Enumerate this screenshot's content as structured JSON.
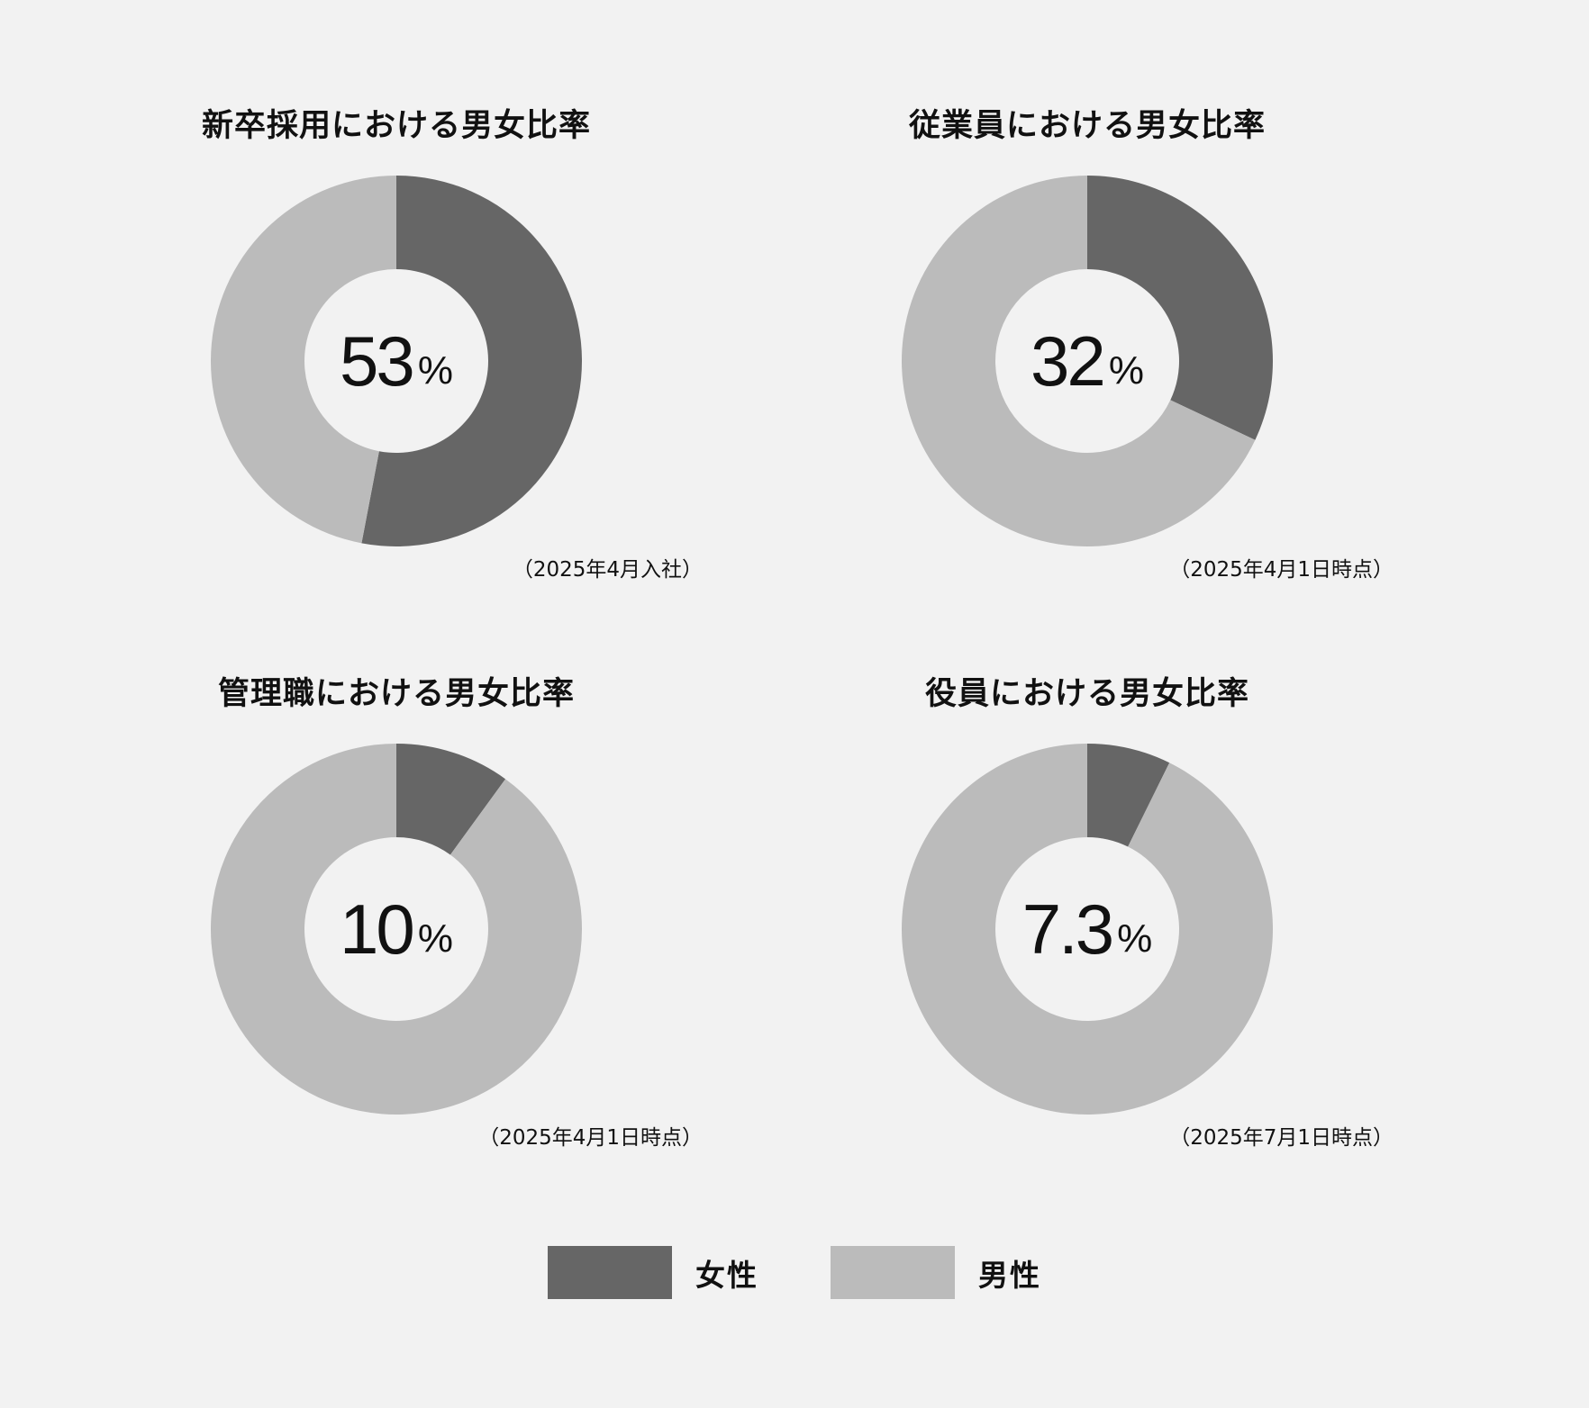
{
  "colors": {
    "female": "#666666",
    "male": "#bbbbbb",
    "background": "#f2f2f2"
  },
  "legend": [
    {
      "label": "女性",
      "color": "#666666"
    },
    {
      "label": "男性",
      "color": "#bbbbbb"
    }
  ],
  "chart_data": [
    {
      "type": "pie",
      "title": "新卒採用における男女比率",
      "center_label": "53",
      "unit": "%",
      "note": "（2025年4月入社）",
      "categories": [
        "女性",
        "男性"
      ],
      "values": [
        53,
        47
      ]
    },
    {
      "type": "pie",
      "title": "従業員における男女比率",
      "center_label": "32",
      "unit": "%",
      "note": "（2025年4月1日時点）",
      "categories": [
        "女性",
        "男性"
      ],
      "values": [
        32,
        68
      ]
    },
    {
      "type": "pie",
      "title": "管理職における男女比率",
      "center_label": "10",
      "unit": "%",
      "note": "（2025年4月1日時点）",
      "categories": [
        "女性",
        "男性"
      ],
      "values": [
        10,
        90
      ]
    },
    {
      "type": "pie",
      "title": "役員における男女比率",
      "center_label": "7.3",
      "unit": "%",
      "note": "（2025年7月1日時点）",
      "categories": [
        "女性",
        "男性"
      ],
      "values": [
        7.3,
        92.7
      ]
    }
  ]
}
